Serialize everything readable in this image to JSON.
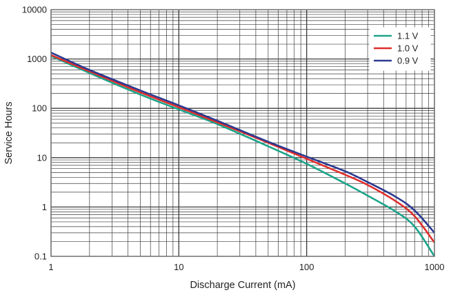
{
  "chart_data": {
    "type": "line",
    "title": "",
    "xlabel": "Discharge Current (mA)",
    "ylabel": "Service Hours",
    "x_scale": "log",
    "y_scale": "log",
    "xlim": [
      1,
      1000
    ],
    "ylim": [
      0.1,
      10000
    ],
    "grid": true,
    "legend_position": "top-right",
    "x_ticks": [
      {
        "value": 1,
        "label": "1"
      },
      {
        "value": 10,
        "label": "10"
      },
      {
        "value": 100,
        "label": "100"
      },
      {
        "value": 1000,
        "label": "1000"
      }
    ],
    "y_ticks": [
      {
        "value": 0.1,
        "label": "0.1"
      },
      {
        "value": 1,
        "label": "1"
      },
      {
        "value": 10,
        "label": "10"
      },
      {
        "value": 100,
        "label": "100"
      },
      {
        "value": 1000,
        "label": "1000"
      },
      {
        "value": 10000,
        "label": "10000"
      }
    ],
    "series": [
      {
        "name": "1.1 V",
        "color": "#1ba48a",
        "points": [
          [
            1,
            1150
          ],
          [
            2,
            520
          ],
          [
            5,
            190
          ],
          [
            10,
            95
          ],
          [
            20,
            48
          ],
          [
            50,
            17
          ],
          [
            100,
            7.5
          ],
          [
            200,
            3.0
          ],
          [
            300,
            1.7
          ],
          [
            500,
            0.8
          ],
          [
            700,
            0.4
          ],
          [
            1000,
            0.1
          ]
        ]
      },
      {
        "name": "1.0 V",
        "color": "#e02d2b",
        "points": [
          [
            1,
            1200
          ],
          [
            2,
            560
          ],
          [
            5,
            210
          ],
          [
            10,
            105
          ],
          [
            20,
            52
          ],
          [
            50,
            20
          ],
          [
            100,
            9.5
          ],
          [
            200,
            4.5
          ],
          [
            300,
            2.8
          ],
          [
            500,
            1.3
          ],
          [
            700,
            0.65
          ],
          [
            1000,
            0.19
          ]
        ]
      },
      {
        "name": "0.9 V",
        "color": "#2b3990",
        "points": [
          [
            1,
            1350
          ],
          [
            2,
            600
          ],
          [
            5,
            230
          ],
          [
            10,
            115
          ],
          [
            20,
            56
          ],
          [
            50,
            21
          ],
          [
            100,
            10.5
          ],
          [
            200,
            5.3
          ],
          [
            300,
            3.2
          ],
          [
            500,
            1.6
          ],
          [
            700,
            0.85
          ],
          [
            1000,
            0.3
          ]
        ]
      }
    ]
  }
}
